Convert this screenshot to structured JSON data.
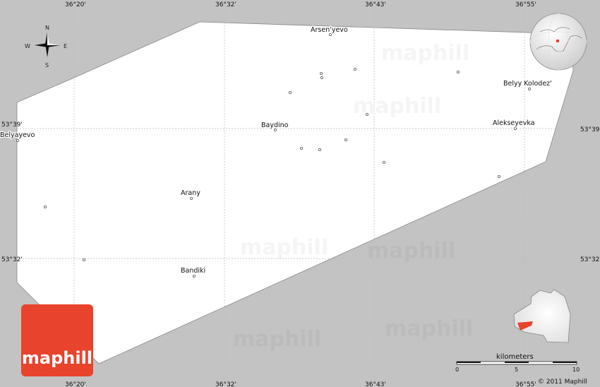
{
  "map": {
    "longitude_labels": [
      "36°20'",
      "36°32'",
      "36°43'",
      "36°55'"
    ],
    "latitude_labels": [
      "53°39'",
      "53°32'"
    ],
    "places": [
      {
        "name": "Arsen'yevo"
      },
      {
        "name": "Belyy Kolodez'"
      },
      {
        "name": "Baydino"
      },
      {
        "name": "Alekseyevka"
      },
      {
        "name": "Belyayevo"
      },
      {
        "name": "Arany"
      },
      {
        "name": "Bandiki"
      }
    ],
    "colors": {
      "background": "#c3c3c3",
      "region": "#ffffff",
      "highlight": "#e8432c"
    }
  },
  "compass": {
    "n": "N",
    "s": "S",
    "e": "E",
    "w": "W"
  },
  "watermark": "maphill",
  "logo": {
    "text": "maphill"
  },
  "scale": {
    "unit": "kilometers",
    "ticks": [
      "0",
      "5",
      "10"
    ]
  },
  "copyright": "© 2011 Maphill"
}
